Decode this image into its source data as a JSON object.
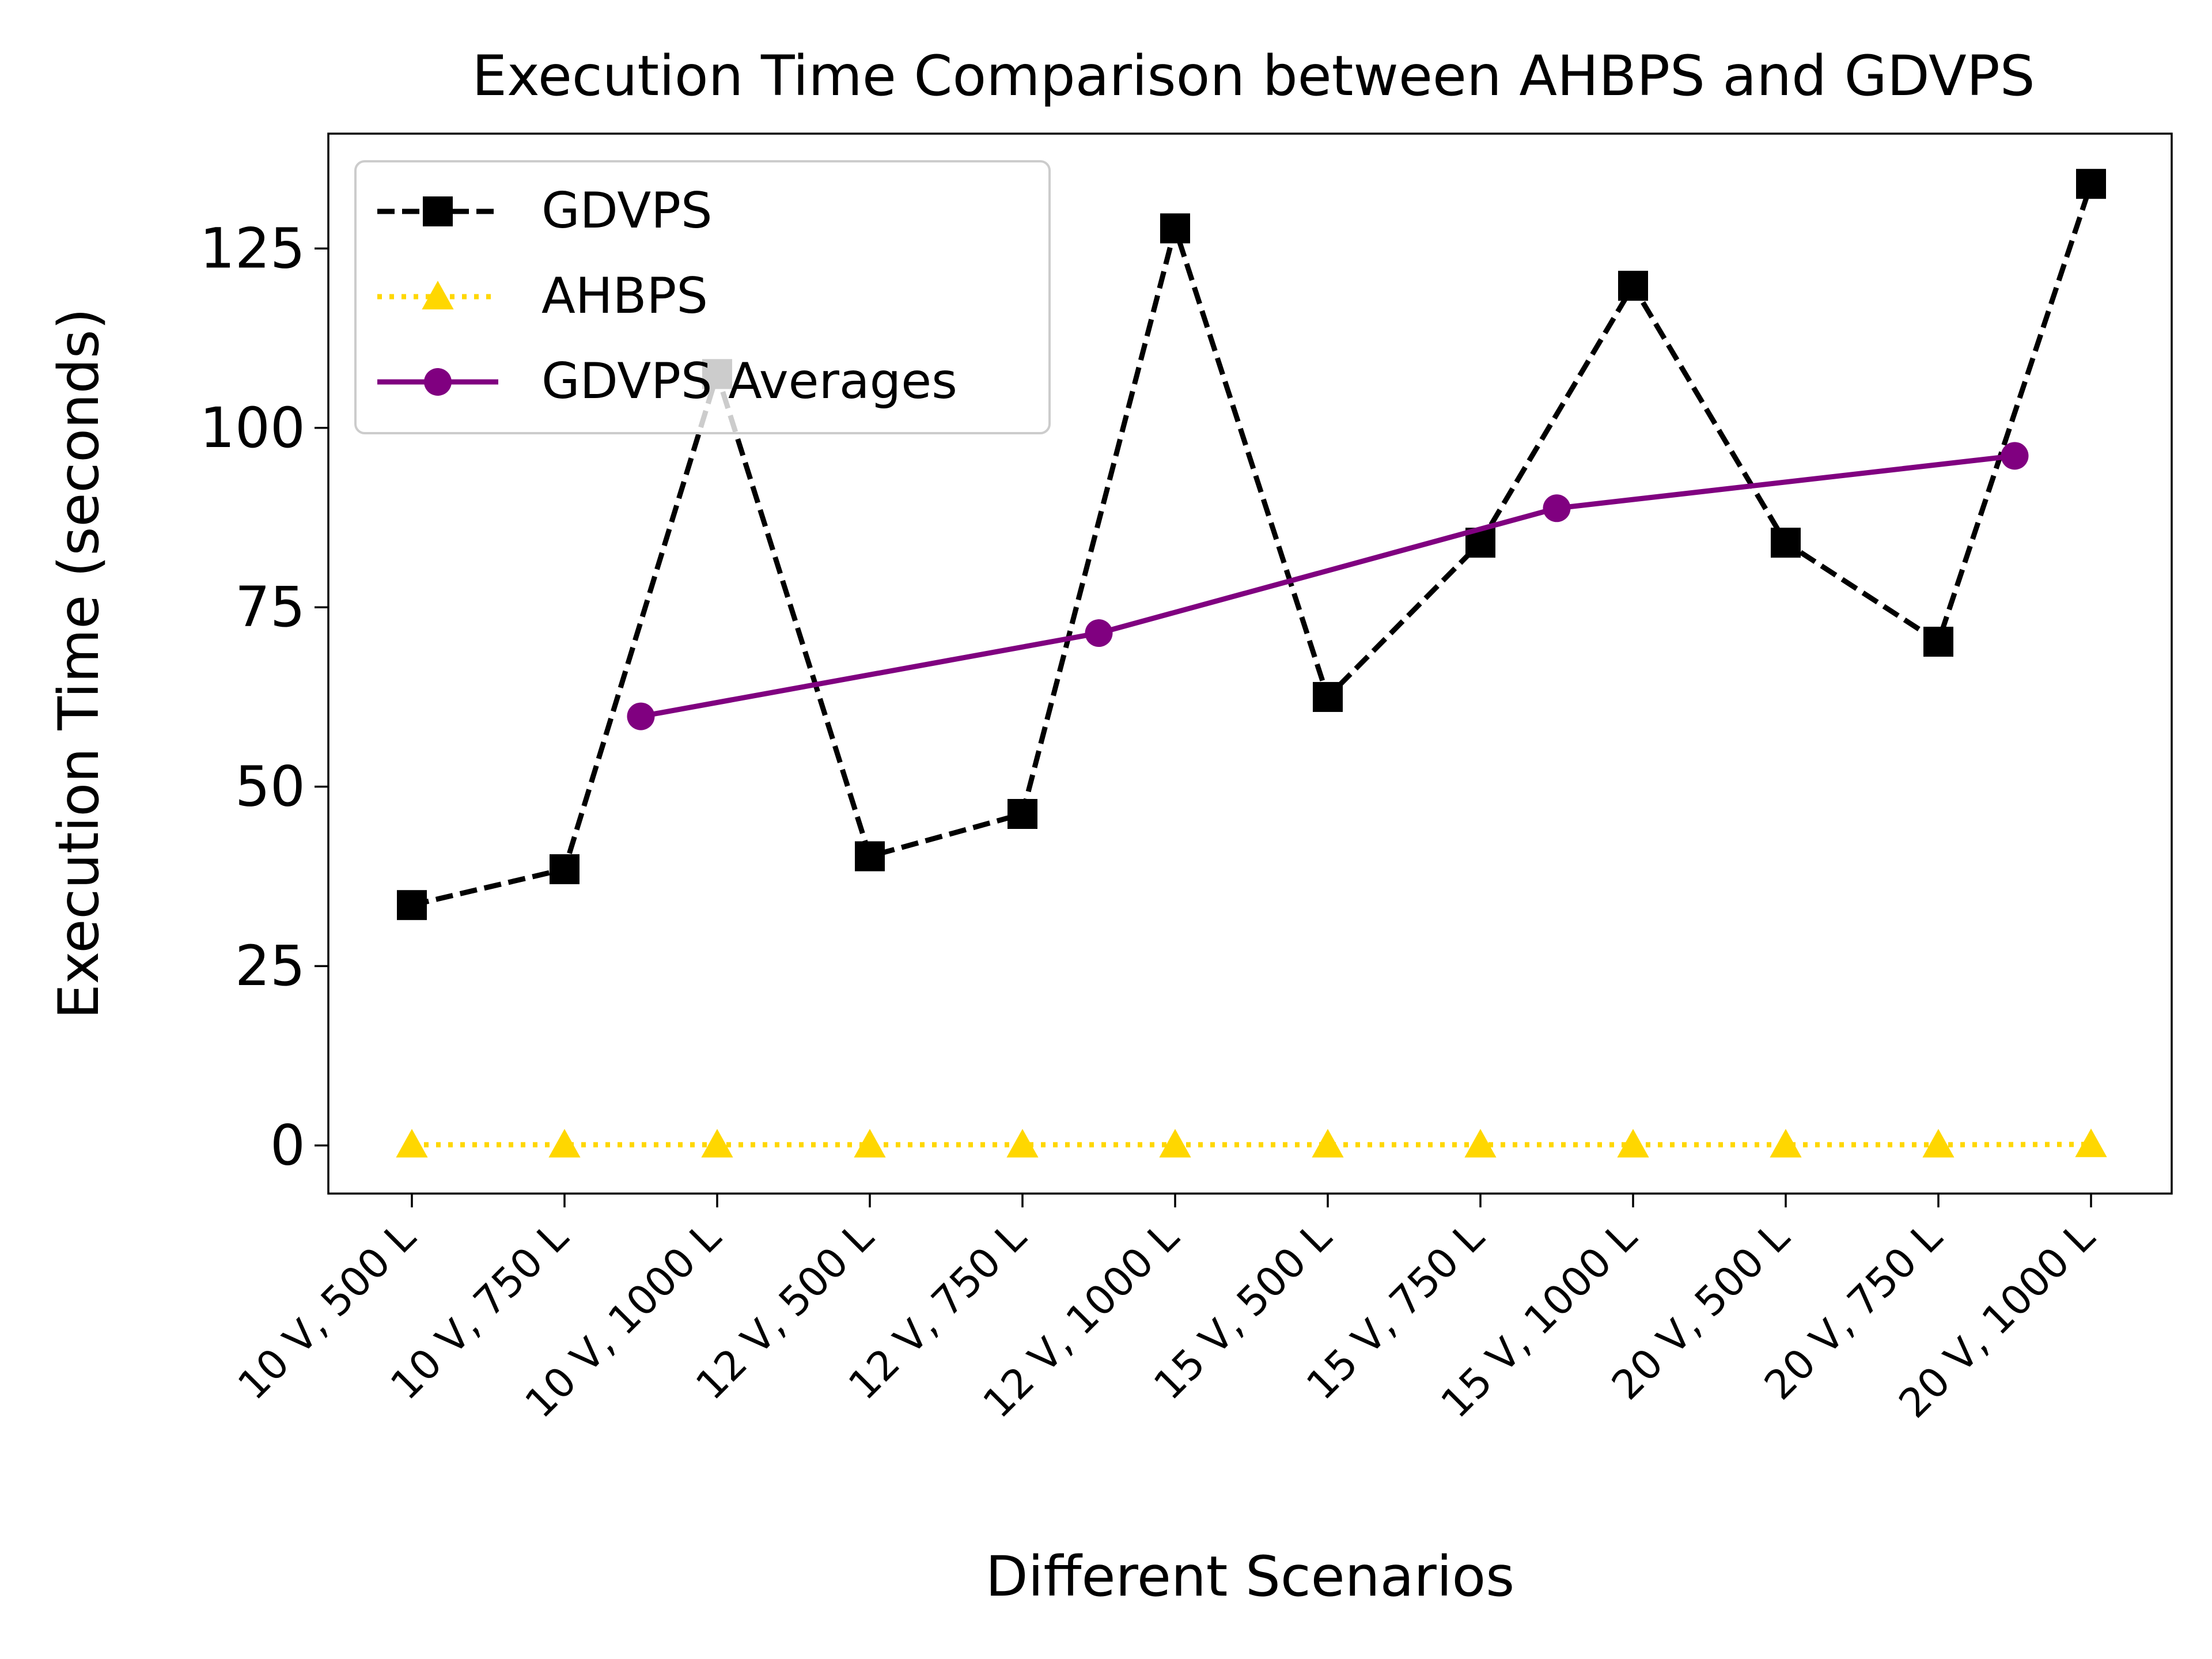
{
  "chart_data": {
    "type": "line",
    "title": "Execution Time Comparison between AHBPS and GDVPS",
    "xlabel": "Different Scenarios",
    "ylabel": "Execution Time (seconds)",
    "ylim": [
      -6.7,
      141
    ],
    "yticks": [
      0,
      25,
      50,
      75,
      100,
      125
    ],
    "categories": [
      "10 V, 500 L",
      "10 V, 750 L",
      "10 V, 1000 L",
      "12 V, 500 L",
      "12 V, 750 L",
      "12 V, 1000 L",
      "15 V, 500 L",
      "15 V, 750 L",
      "15 V, 1000 L",
      "20 V, 500 L",
      "20 V, 750 L",
      "20 V, 1000 L"
    ],
    "legend_position": "top-left",
    "grid": false,
    "series": [
      {
        "name": "GDVPS",
        "style": "dashed",
        "marker": "square",
        "color": "#000000",
        "x": [
          0,
          1,
          2,
          3,
          4,
          5,
          6,
          7,
          8,
          9,
          10,
          11
        ],
        "values": [
          33.5,
          38.5,
          107.5,
          40.3,
          46.2,
          127.8,
          62.5,
          84.0,
          119.8,
          84.0,
          70.2,
          134.0
        ]
      },
      {
        "name": "AHBPS",
        "style": "dotted",
        "marker": "triangle",
        "color": "#FFD700",
        "x": [
          0,
          1,
          2,
          3,
          4,
          5,
          6,
          7,
          8,
          9,
          10,
          11
        ],
        "values": [
          0.1,
          0.1,
          0.1,
          0.1,
          0.1,
          0.1,
          0.1,
          0.1,
          0.1,
          0.1,
          0.1,
          0.15
        ]
      },
      {
        "name": "GDVPS Averages",
        "style": "solid",
        "marker": "circle",
        "color": "#800080",
        "x": [
          1.5,
          4.5,
          7.5,
          10.5
        ],
        "values": [
          59.8,
          71.4,
          88.8,
          96.1
        ]
      }
    ]
  }
}
